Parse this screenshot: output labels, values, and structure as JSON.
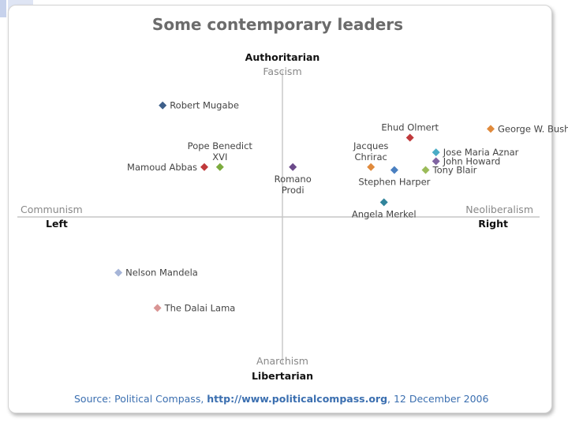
{
  "chart_data": {
    "type": "scatter",
    "title": "Some contemporary leaders",
    "axes": {
      "top_bold": "Authoritarian",
      "top_light": "Fascism",
      "bottom_light": "Anarchism",
      "bottom_bold": "Libertarian",
      "left_light": "Communism",
      "left_bold": "Left",
      "right_light": "Neoliberalism",
      "right_bold": "Right"
    },
    "xlim": [
      -10,
      10
    ],
    "ylim": [
      -10,
      10
    ],
    "points": [
      {
        "name": "Robert Mugabe",
        "label_lines": [
          "Robert Mugabe"
        ],
        "x": -4.6,
        "y": 7.6,
        "color": "#3e5f8a",
        "label_pos": "right"
      },
      {
        "name": "Pope Benedict XVI",
        "label_lines": [
          "Pope Benedict",
          "XVI"
        ],
        "x": -2.4,
        "y": 3.4,
        "color": "#7cab3e",
        "label_pos": "above"
      },
      {
        "name": "Mamoud Abbas",
        "label_lines": [
          "Mamoud Abbas"
        ],
        "x": -3.0,
        "y": 3.4,
        "color": "#c0393b",
        "label_pos": "left"
      },
      {
        "name": "Romano Prodi",
        "label_lines": [
          "Romano",
          "Prodi"
        ],
        "x": 0.4,
        "y": 3.4,
        "color": "#6b4a8a",
        "label_pos": "below"
      },
      {
        "name": "Jacques Chrirac",
        "label_lines": [
          "Jacques",
          "Chrirac"
        ],
        "x": 3.4,
        "y": 3.4,
        "color": "#e08a3c",
        "label_pos": "above"
      },
      {
        "name": "Stephen Harper",
        "label_lines": [
          "Stephen Harper"
        ],
        "x": 4.3,
        "y": 3.2,
        "color": "#4a7fc0",
        "label_pos": "below"
      },
      {
        "name": "Ehud Olmert",
        "label_lines": [
          "Ehud Olmert"
        ],
        "x": 4.9,
        "y": 5.4,
        "color": "#c0393b",
        "label_pos": "above"
      },
      {
        "name": "George W. Bush",
        "label_lines": [
          "George W. Bush"
        ],
        "x": 8.0,
        "y": 6.0,
        "color": "#e08a3c",
        "label_pos": "right"
      },
      {
        "name": "Jose Maria Aznar",
        "label_lines": [
          "Jose Maria Aznar"
        ],
        "x": 5.9,
        "y": 4.4,
        "color": "#4bacc6",
        "label_pos": "right"
      },
      {
        "name": "John Howard",
        "label_lines": [
          "John Howard"
        ],
        "x": 5.9,
        "y": 3.8,
        "color": "#8064a2",
        "label_pos": "right"
      },
      {
        "name": "Tony Blair",
        "label_lines": [
          "Tony Blair"
        ],
        "x": 5.5,
        "y": 3.2,
        "color": "#9bbb59",
        "label_pos": "right"
      },
      {
        "name": "Angela Merkel",
        "label_lines": [
          "Angela Merkel"
        ],
        "x": 3.9,
        "y": 1.0,
        "color": "#31849b",
        "label_pos": "below"
      },
      {
        "name": "Nelson Mandela",
        "label_lines": [
          "Nelson Mandela"
        ],
        "x": -6.3,
        "y": -3.8,
        "color": "#a6b5d8",
        "label_pos": "right"
      },
      {
        "name": "The Dalai Lama",
        "label_lines": [
          "The Dalai Lama"
        ],
        "x": -4.8,
        "y": -6.2,
        "color": "#d99594",
        "label_pos": "right"
      }
    ]
  },
  "source": {
    "prefix": "Source: Political Compass, ",
    "url": "http://www.politicalcompass.org",
    "suffix": ", 12 December 2006"
  }
}
